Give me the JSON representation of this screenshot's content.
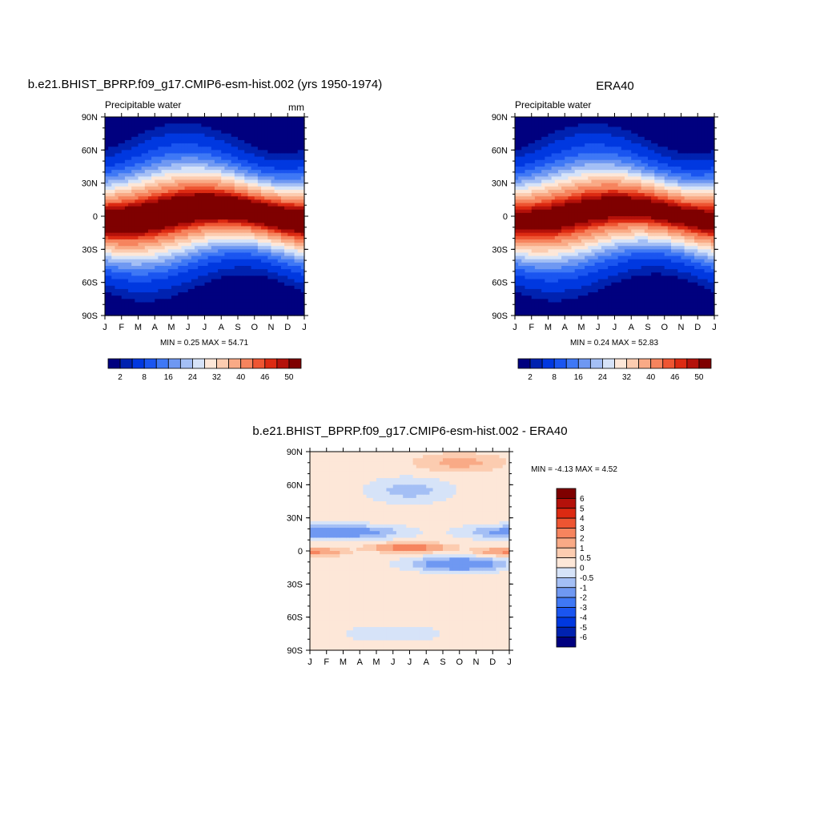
{
  "chart_data": [
    {
      "type": "heatmap",
      "title": "b.e21.BHIST_BPRP.f09_g17.CMIP6-esm-hist.002 (yrs 1950-1974)",
      "subtitle": "Precipitable water",
      "units": "mm",
      "x_ticks": [
        "J",
        "F",
        "M",
        "A",
        "M",
        "J",
        "J",
        "A",
        "S",
        "O",
        "N",
        "D",
        "J"
      ],
      "y_ticks": [
        "90N",
        "60N",
        "30N",
        "0",
        "30S",
        "60S",
        "90S"
      ],
      "stats": "MIN =   0.25 MAX =  54.71",
      "min": 0.25,
      "max": 54.71,
      "equator_peak": 54.71,
      "itcz_amplitude_deg": 12,
      "colorbar": {
        "orientation": "horizontal",
        "labels": [
          "2",
          "8",
          "16",
          "24",
          "32",
          "40",
          "46",
          "50"
        ],
        "levels": [
          2,
          4,
          8,
          12,
          16,
          20,
          24,
          28,
          32,
          36,
          40,
          44,
          46,
          48,
          50
        ],
        "colors": [
          "#00007f",
          "#0022b0",
          "#0038e0",
          "#1a55f0",
          "#3f78f5",
          "#6f98f2",
          "#a4bff5",
          "#d6e3f8",
          "#fde7d8",
          "#fcccb0",
          "#f9aa86",
          "#f6845e",
          "#ee5532",
          "#dc2a12",
          "#b4110a",
          "#7f0000"
        ]
      }
    },
    {
      "type": "heatmap",
      "title": "ERA40",
      "subtitle": "Precipitable water",
      "x_ticks": [
        "J",
        "F",
        "M",
        "A",
        "M",
        "J",
        "J",
        "A",
        "S",
        "O",
        "N",
        "D",
        "J"
      ],
      "y_ticks": [
        "90N",
        "60N",
        "30N",
        "0",
        "30S",
        "60S",
        "90S"
      ],
      "stats": "MIN =   0.24 MAX =  52.83",
      "min": 0.24,
      "max": 52.83,
      "equator_peak": 52.83,
      "itcz_amplitude_deg": 12,
      "colorbar": {
        "orientation": "horizontal",
        "labels": [
          "2",
          "8",
          "16",
          "24",
          "32",
          "40",
          "46",
          "50"
        ],
        "levels": [
          2,
          4,
          8,
          12,
          16,
          20,
          24,
          28,
          32,
          36,
          40,
          44,
          46,
          48,
          50
        ],
        "colors": [
          "#00007f",
          "#0022b0",
          "#0038e0",
          "#1a55f0",
          "#3f78f5",
          "#6f98f2",
          "#a4bff5",
          "#d6e3f8",
          "#fde7d8",
          "#fcccb0",
          "#f9aa86",
          "#f6845e",
          "#ee5532",
          "#dc2a12",
          "#b4110a",
          "#7f0000"
        ]
      }
    },
    {
      "type": "heatmap",
      "title": "b.e21.BHIST_BPRP.f09_g17.CMIP6-esm-hist.002 - ERA40",
      "x_ticks": [
        "J",
        "F",
        "M",
        "A",
        "M",
        "J",
        "J",
        "A",
        "S",
        "O",
        "N",
        "D",
        "J"
      ],
      "y_ticks": [
        "90N",
        "60N",
        "30N",
        "0",
        "30S",
        "60S",
        "90S"
      ],
      "stats": "MIN =  -4.13 MAX =   4.52",
      "min": -4.13,
      "max": 4.52,
      "colorbar": {
        "orientation": "vertical",
        "labels": [
          "6",
          "5",
          "4",
          "3",
          "2",
          "1",
          "0.5",
          "0",
          "-0.5",
          "-1",
          "-2",
          "-3",
          "-4",
          "-5",
          "-6"
        ],
        "levels": [
          -6,
          -5,
          -4,
          -3,
          -2,
          -1,
          -0.5,
          0,
          0.5,
          1,
          2,
          3,
          4,
          5,
          6
        ],
        "colors": [
          "#00007f",
          "#0022b0",
          "#0038e0",
          "#1a55f0",
          "#3f78f5",
          "#6f98f2",
          "#a4bff5",
          "#d6e3f8",
          "#fde7d8",
          "#fcccb0",
          "#f9aa86",
          "#f6845e",
          "#ee5532",
          "#dc2a12",
          "#b4110a",
          "#7f0000"
        ]
      }
    }
  ]
}
